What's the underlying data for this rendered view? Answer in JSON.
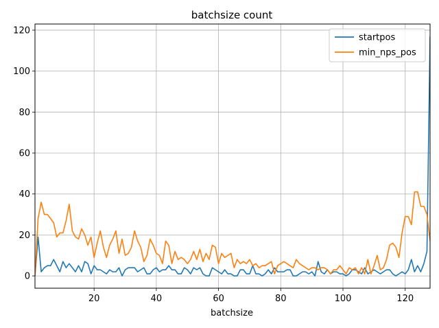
{
  "chart_data": {
    "type": "line",
    "title": "batchsize count",
    "xlabel": "batchsize",
    "ylabel": "",
    "xlim": [
      1,
      128
    ],
    "ylim": [
      -6,
      123
    ],
    "xticks": [
      20,
      40,
      60,
      80,
      100,
      120
    ],
    "yticks": [
      0,
      20,
      40,
      60,
      80,
      100,
      120
    ],
    "grid": true,
    "legend": "top-right",
    "x_start": 1,
    "colors": {
      "startpos": "#1f77b4",
      "min_nps_pos": "#ff7f0e"
    },
    "series": [
      {
        "name": "startpos",
        "values": [
          0,
          19,
          2,
          4,
          5,
          5,
          8,
          5,
          2,
          7,
          4,
          6,
          4,
          2,
          5,
          2,
          7,
          6,
          1,
          5,
          3,
          3,
          2,
          1,
          3,
          2,
          2,
          4,
          0,
          3,
          4,
          4,
          4,
          2,
          3,
          4,
          1,
          1,
          3,
          4,
          2,
          3,
          3,
          5,
          3,
          3,
          1,
          1,
          4,
          3,
          1,
          4,
          3,
          4,
          1,
          0,
          0,
          4,
          3,
          2,
          1,
          3,
          1,
          1,
          0,
          0,
          3,
          3,
          1,
          1,
          5,
          1,
          1,
          0,
          1,
          3,
          1,
          4,
          2,
          2,
          2,
          3,
          3,
          0,
          0,
          1,
          2,
          2,
          1,
          2,
          0,
          7,
          2,
          1,
          3,
          1,
          2,
          2,
          1,
          1,
          0,
          1,
          3,
          3,
          2,
          1,
          4,
          1,
          2,
          3,
          2,
          1,
          2,
          3,
          3,
          1,
          0,
          1,
          2,
          1,
          3,
          8,
          2,
          5,
          2,
          6,
          12,
          117
        ]
      },
      {
        "name": "min_nps_pos",
        "values": [
          0,
          28,
          36,
          30,
          30,
          28,
          26,
          19,
          21,
          21,
          27,
          35,
          22,
          19,
          18,
          23,
          20,
          15,
          19,
          9,
          16,
          22,
          14,
          9,
          15,
          18,
          22,
          11,
          18,
          10,
          11,
          14,
          22,
          17,
          14,
          7,
          10,
          18,
          15,
          11,
          10,
          6,
          17,
          15,
          6,
          12,
          8,
          9,
          8,
          6,
          8,
          12,
          8,
          13,
          7,
          11,
          8,
          15,
          14,
          6,
          11,
          9,
          10,
          11,
          4,
          8,
          6,
          7,
          6,
          8,
          5,
          6,
          4,
          5,
          5,
          6,
          7,
          1,
          5,
          6,
          7,
          6,
          5,
          4,
          8,
          6,
          5,
          4,
          3,
          4,
          4,
          3,
          4,
          4,
          3,
          1,
          3,
          3,
          5,
          3,
          1,
          4,
          3,
          4,
          1,
          4,
          1,
          8,
          1,
          5,
          10,
          3,
          4,
          8,
          15,
          16,
          14,
          9,
          21,
          29,
          29,
          25,
          41,
          41,
          34,
          34,
          30,
          17
        ]
      }
    ]
  }
}
